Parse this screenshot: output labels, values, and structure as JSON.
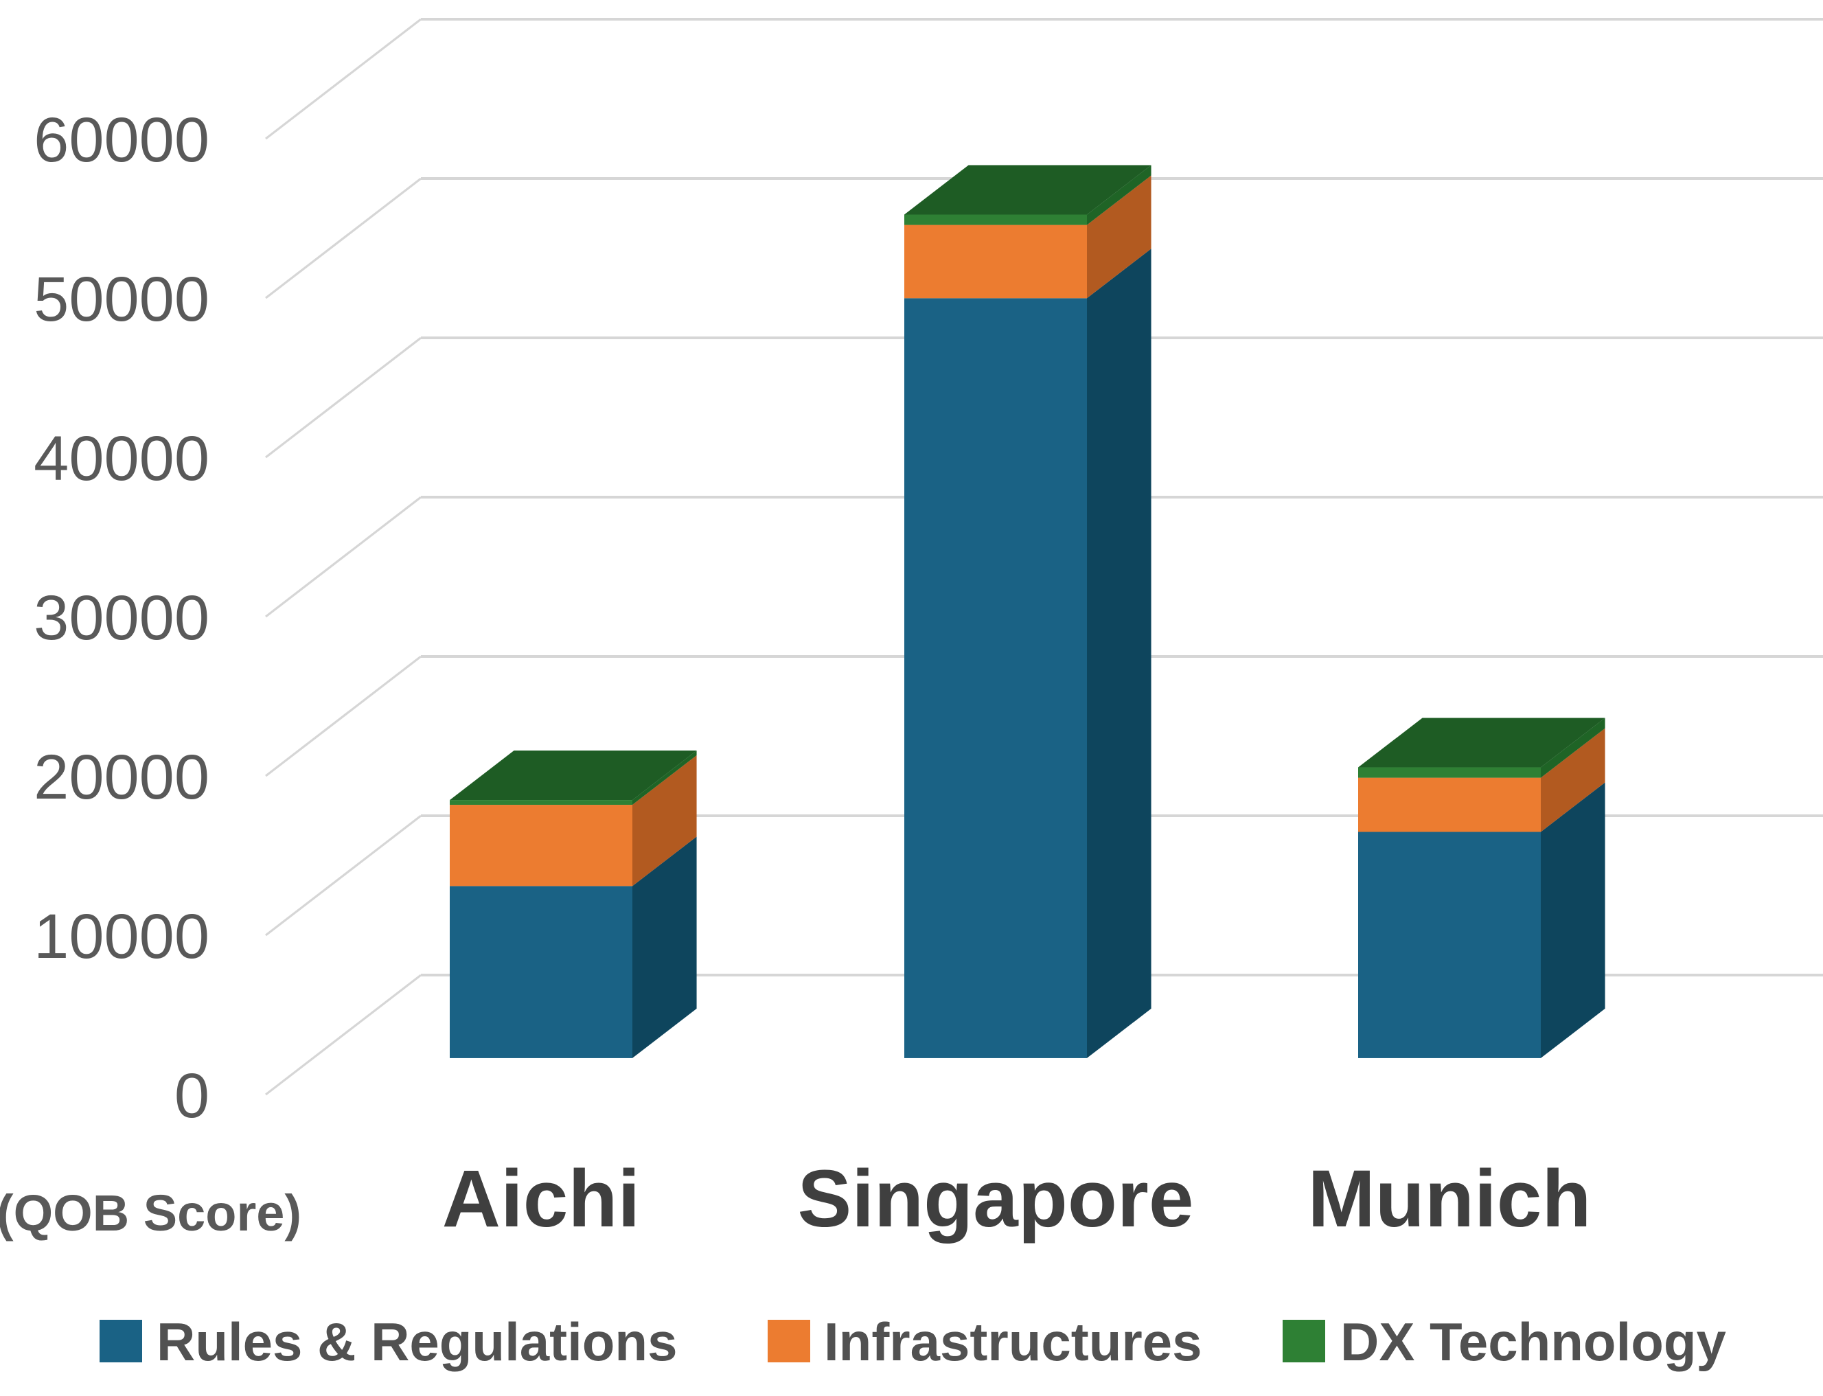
{
  "chart_data": {
    "type": "bar",
    "stacked": true,
    "style": "3d-column",
    "title": "",
    "axis_note": "(QOB Score)",
    "categories": [
      "Aichi",
      "Singapore",
      "Munich"
    ],
    "series": [
      {
        "name": "Rules & Regulations",
        "values": [
          10800,
          47700,
          14200
        ],
        "color_front": "#1A6285",
        "color_side": "#0E455D",
        "color_top": "#15567A"
      },
      {
        "name": "Infrastructures",
        "values": [
          5100,
          4600,
          3400
        ],
        "color_front": "#EC7C30",
        "color_side": "#B25A20",
        "color_top": "#C96A27"
      },
      {
        "name": "DX Technology",
        "values": [
          300,
          650,
          650
        ],
        "color_front": "#2E8034",
        "color_side": "#1F6426",
        "color_top": "#1E5C24"
      }
    ],
    "yticks": [
      0,
      10000,
      20000,
      30000,
      40000,
      50000,
      60000
    ],
    "ylim": [
      0,
      60000
    ],
    "grid": true,
    "legend_position": "bottom",
    "colors": {
      "gridline": "#D6D6D6",
      "tick_label": "#595959",
      "category_label": "#3F3F3F",
      "axis_note": "#595959",
      "legend_text": "#515151",
      "background": "#FFFFFF"
    }
  }
}
